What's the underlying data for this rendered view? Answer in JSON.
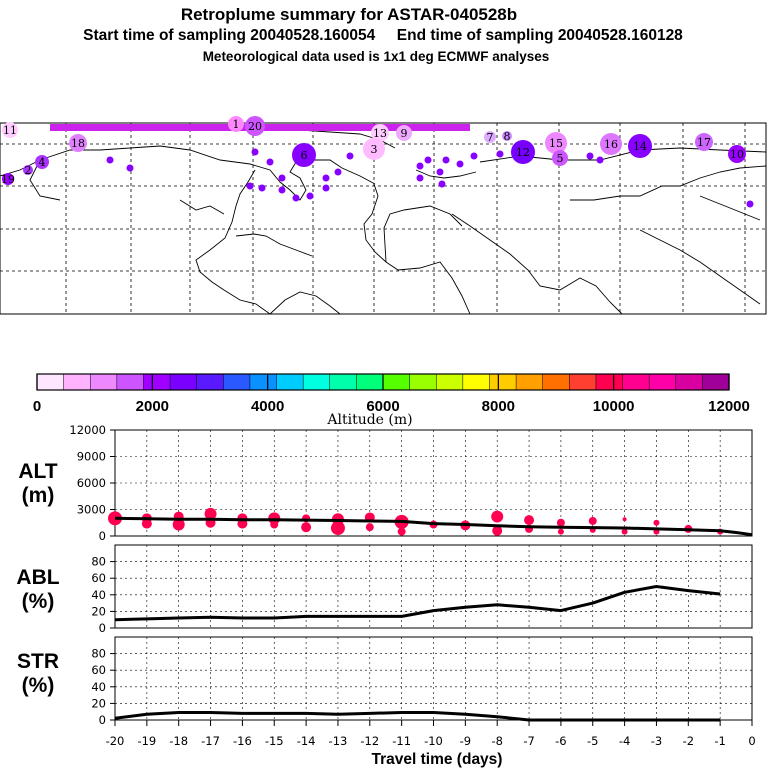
{
  "title": {
    "line1": "Retroplume summary for ASTAR-040528b",
    "line2": "Start time of sampling 20040528.160054     End time of sampling 20040528.160128",
    "line3": "Meteorological data used is 1x1 deg ECMWF analyses"
  },
  "colorbar": {
    "label": "Altitude (m)",
    "tick_labels": [
      "0",
      "2000",
      "4000",
      "6000",
      "8000",
      "10000",
      "12000"
    ],
    "colors": [
      "#ffe6ff",
      "#ffb3ff",
      "#ee88ff",
      "#cc55ff",
      "#a000ff",
      "#7a00ff",
      "#5a1aff",
      "#2a5aff",
      "#0a90ff",
      "#00ccff",
      "#00ffe0",
      "#00ffaa",
      "#00ff7a",
      "#55ff00",
      "#9aff00",
      "#ccff00",
      "#ffff00",
      "#ffcc00",
      "#ffa000",
      "#ff7000",
      "#ff4030",
      "#ff0050",
      "#ff0090",
      "#ff00a8",
      "#d800a0",
      "#a00098"
    ]
  },
  "map": {
    "labels": [
      "11",
      "18",
      "13",
      "9",
      "7",
      "8",
      "15",
      "16",
      "14",
      "17",
      "10",
      "6",
      "12",
      "5",
      "3",
      "1",
      "20",
      "19",
      "4",
      "2"
    ]
  },
  "panels": {
    "alt": {
      "label1": "ALT",
      "label2": "(m)"
    },
    "abl": {
      "label1": "ABL",
      "label2": "(%)"
    },
    "str": {
      "label1": "STR",
      "label2": "(%)"
    }
  },
  "xaxis_title": "Travel time (days)",
  "chart_data": [
    {
      "type": "line",
      "panel": "ALT",
      "ylabel": "ALT (m)",
      "ylim": [
        0,
        12000
      ],
      "yticks": [
        "0",
        "3000",
        "6000",
        "9000",
        "12000"
      ],
      "xlim": [
        -20,
        0
      ],
      "xticks": [
        "-20",
        "-19",
        "-18",
        "-17",
        "-16",
        "-15",
        "-14",
        "-13",
        "-12",
        "-11",
        "-10",
        "-9",
        "-8",
        "-7",
        "-6",
        "-5",
        "-4",
        "-3",
        "-2",
        "-1",
        "0"
      ],
      "x": [
        -20,
        -19,
        -18,
        -17,
        -16,
        -15,
        -14,
        -13,
        -12,
        -11,
        -10,
        -9,
        -8,
        -7,
        -6,
        -5,
        -4,
        -3,
        -2,
        -1,
        -0.5,
        0
      ],
      "y": [
        2000,
        1950,
        1900,
        1900,
        1850,
        1850,
        1800,
        1750,
        1700,
        1650,
        1400,
        1300,
        1150,
        1050,
        1000,
        950,
        900,
        800,
        700,
        600,
        400,
        150
      ],
      "scatter_points": [
        {
          "x": -20,
          "y": 2000
        },
        {
          "x": -19,
          "y": 1400
        },
        {
          "x": -19,
          "y": 2000
        },
        {
          "x": -18,
          "y": 1300
        },
        {
          "x": -18,
          "y": 2200
        },
        {
          "x": -17,
          "y": 1500
        },
        {
          "x": -17,
          "y": 2500
        },
        {
          "x": -16,
          "y": 1400
        },
        {
          "x": -16,
          "y": 2000
        },
        {
          "x": -15,
          "y": 1300
        },
        {
          "x": -15,
          "y": 2000
        },
        {
          "x": -14,
          "y": 1000
        },
        {
          "x": -14,
          "y": 2000
        },
        {
          "x": -13,
          "y": 900
        },
        {
          "x": -13,
          "y": 1900
        },
        {
          "x": -12,
          "y": 1000
        },
        {
          "x": -12,
          "y": 2100
        },
        {
          "x": -11,
          "y": 500
        },
        {
          "x": -11,
          "y": 1600
        },
        {
          "x": -10,
          "y": 1300
        },
        {
          "x": -9,
          "y": 1200
        },
        {
          "x": -8,
          "y": 600
        },
        {
          "x": -8,
          "y": 2200
        },
        {
          "x": -7,
          "y": 800
        },
        {
          "x": -7,
          "y": 1800
        },
        {
          "x": -6,
          "y": 500
        },
        {
          "x": -6,
          "y": 1500
        },
        {
          "x": -5,
          "y": 700
        },
        {
          "x": -5,
          "y": 1700
        },
        {
          "x": -4,
          "y": 500
        },
        {
          "x": -4,
          "y": 1900
        },
        {
          "x": -3,
          "y": 500
        },
        {
          "x": -3,
          "y": 1500
        },
        {
          "x": -2,
          "y": 800
        },
        {
          "x": -1,
          "y": 500
        }
      ]
    },
    {
      "type": "line",
      "panel": "ABL",
      "ylabel": "ABL (%)",
      "ylim": [
        0,
        100
      ],
      "yticks": [
        "0",
        "20",
        "40",
        "60",
        "80"
      ],
      "x": [
        -20,
        -19,
        -18,
        -17,
        -16,
        -15,
        -14,
        -13,
        -12,
        -11,
        -10,
        -9,
        -8,
        -7,
        -6,
        -5,
        -4,
        -3,
        -2,
        -1
      ],
      "y": [
        10,
        11,
        12,
        13,
        12,
        12,
        14,
        14,
        14,
        14,
        21,
        25,
        28,
        25,
        21,
        30,
        43,
        50,
        45,
        41
      ]
    },
    {
      "type": "line",
      "panel": "STR",
      "ylabel": "STR (%)",
      "ylim": [
        0,
        100
      ],
      "yticks": [
        "0",
        "20",
        "40",
        "60",
        "80"
      ],
      "x": [
        -20,
        -19,
        -18,
        -17,
        -16,
        -15,
        -14,
        -13,
        -12,
        -11,
        -10,
        -9,
        -8,
        -7,
        -6,
        -5,
        -4,
        -3,
        -2,
        -1
      ],
      "y": [
        2,
        7,
        9,
        9,
        8,
        8,
        8,
        7,
        8,
        9,
        9,
        7,
        4,
        0,
        0,
        0,
        0,
        0,
        0,
        0
      ]
    }
  ]
}
